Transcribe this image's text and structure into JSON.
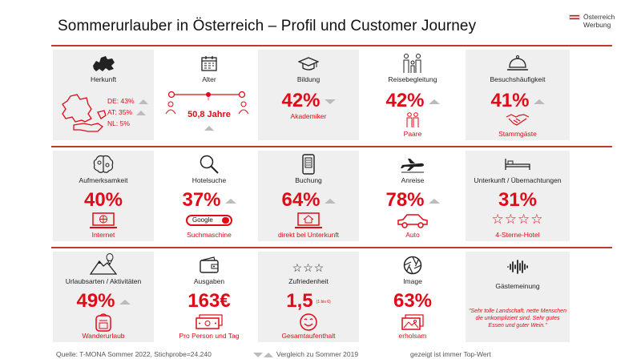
{
  "title": "Sommerurlauber  in Österreich – Profil und Customer Journey",
  "logo": {
    "line1": "Österreich",
    "line2": "Werbung"
  },
  "colors": {
    "accent": "#e10a17",
    "grey_cell": "#efefef",
    "arrow": "#bbbbbb"
  },
  "cells": {
    "herkunft": {
      "label": "Herkunft",
      "rows": [
        "DE:  43%",
        "AT:  35%",
        "NL:  5%"
      ],
      "icon": "europe-map-icon"
    },
    "alter": {
      "label": "Alter",
      "value": "50,8 Jahre",
      "icon": "calendar-icon"
    },
    "bildung": {
      "label": "Bildung",
      "value": "42%",
      "sub": "Akademiker",
      "icon": "graduation-cap-icon"
    },
    "reisebegleitung": {
      "label": "Reisebegleitung",
      "value": "42%",
      "sub": "Paare",
      "icon": "family-icon"
    },
    "besuchshaeufigkeit": {
      "label": "Besuchshäufigkeit",
      "value": "41%",
      "sub": "Stammgäste",
      "icon": "reception-bell-icon"
    },
    "aufmerksamkeit": {
      "label": "Aufmerksamkeit",
      "value": "40%",
      "sub": "Internet",
      "icon": "brain-icon"
    },
    "hotelsuche": {
      "label": "Hotelsuche",
      "value": "37%",
      "sub": "Suchmaschine",
      "search_box": "Google",
      "icon": "magnifier-icon"
    },
    "buchung": {
      "label": "Buchung",
      "value": "64%",
      "sub": "direkt bei Unterkunft",
      "icon": "smartphone-icon"
    },
    "anreise": {
      "label": "Anreise",
      "value": "78%",
      "sub": "Auto",
      "icon": "airplane-icon"
    },
    "unterkunft": {
      "label": "Unterkunft / Übernachtungen",
      "value": "31%",
      "stars": "☆☆☆☆",
      "sub": "4-Sterne-Hotel",
      "icon": "bed-icon"
    },
    "urlaubsarten": {
      "label": "Urlaubsarten / Aktivitäten",
      "value": "49%",
      "sub": "Wanderurlaub",
      "icon": "mountain-balloon-icon"
    },
    "ausgaben": {
      "label": "Ausgaben",
      "value": "163€",
      "sub": "Pro Person und Tag",
      "icon": "wallet-icon"
    },
    "zufriedenheit": {
      "label": "Zufriedenheit",
      "value": "1,5",
      "scale": "(1 bis 6)",
      "sub": "Gesamtaufenthalt",
      "stars": "☆☆☆",
      "icon": "stars-icon"
    },
    "image": {
      "label": "Image",
      "value": "63%",
      "sub": "erholsam",
      "icon": "camera-aperture-icon"
    },
    "gaestemeinung": {
      "label": "Gästemeinung",
      "quote": "\"Sehr tolle Landschaft, nette Menschen die unkompliziert sind. Sehr gutes Essen und guter Wein.\"",
      "icon": "soundwave-icon"
    }
  },
  "footer": {
    "source": "Quelle: T-MONA Sommer 2022, Stichprobe=24.240",
    "compare": "Vergleich zu Sommer 2019",
    "note": "gezeigt ist immer Top-Wert"
  }
}
